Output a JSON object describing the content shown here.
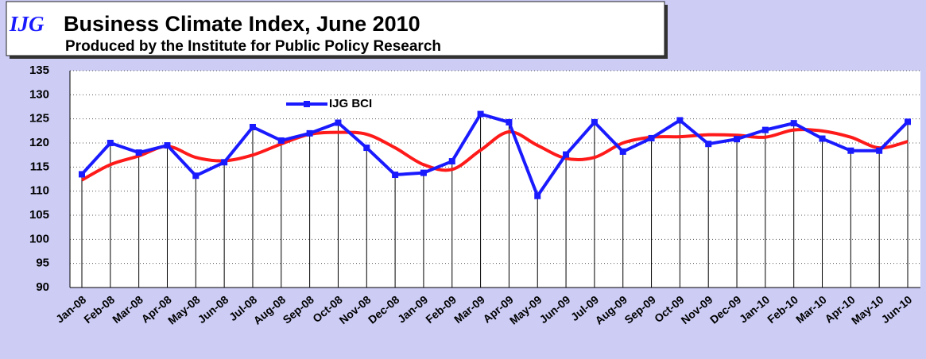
{
  "chart_data": {
    "type": "line",
    "title_prefix": "IJG",
    "title": "Business Climate Index, June 2010",
    "subtitle": "Produced by the Institute for Public Policy Research",
    "categories": [
      "Jan-08",
      "Feb-08",
      "Mar-08",
      "Apr-08",
      "May-08",
      "Jun-08",
      "Jul-08",
      "Aug-08",
      "Sep-08",
      "Oct-08",
      "Nov-08",
      "Dec-08",
      "Jan-09",
      "Feb-09",
      "Mar-09",
      "Apr-09",
      "May-09",
      "Jun-09",
      "Jul-09",
      "Aug-09",
      "Sep-09",
      "Oct-09",
      "Nov-09",
      "Dec-09",
      "Jan-10",
      "Feb-10",
      "Mar-10",
      "Apr-10",
      "May-10",
      "Jun-10"
    ],
    "series": [
      {
        "name": "IJG BCI",
        "color": "#1a1aff",
        "marker": "square",
        "values": [
          113.5,
          120,
          118,
          119.5,
          113.2,
          116,
          123.3,
          120.5,
          122,
          124.2,
          119,
          113.4,
          113.8,
          116.2,
          126,
          124.3,
          109,
          117.6,
          124.3,
          118.2,
          121,
          124.7,
          119.8,
          120.8,
          122.7,
          124.1,
          120.9,
          118.4,
          118.4,
          124.4
        ]
      },
      {
        "color": "#ff1a1a",
        "smooth": true,
        "values": [
          112.3,
          115.5,
          117.3,
          119.3,
          117,
          116.3,
          117.5,
          119.8,
          121.8,
          122.2,
          121.8,
          119,
          115.5,
          114.5,
          118.5,
          122.3,
          119.5,
          116.8,
          117,
          120,
          121.2,
          121.3,
          121.7,
          121.6,
          121.2,
          122.7,
          122.5,
          121.2,
          119,
          120.3
        ]
      }
    ],
    "ylim": [
      90,
      135
    ],
    "yticks": [
      90,
      95,
      100,
      105,
      110,
      115,
      120,
      125,
      130,
      135
    ],
    "grid": true,
    "drop_lines": true
  }
}
